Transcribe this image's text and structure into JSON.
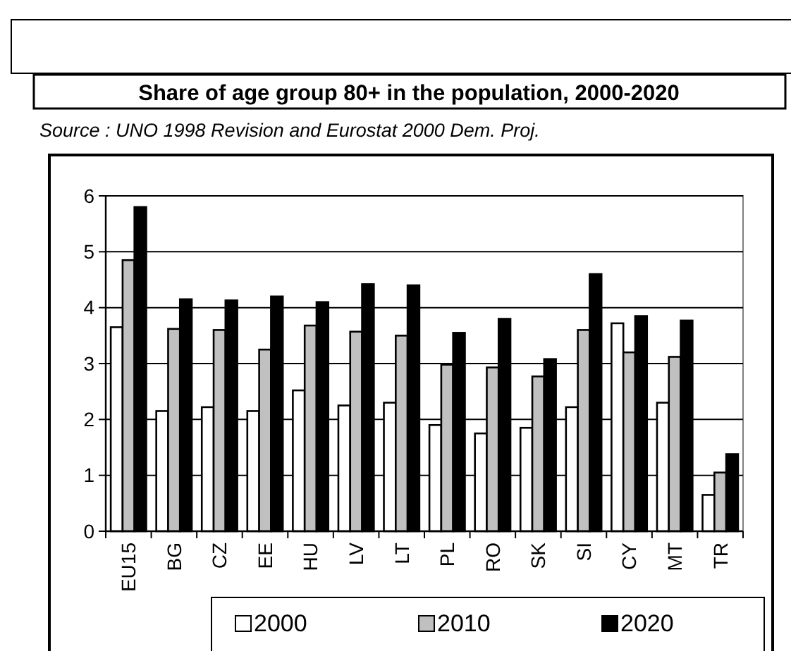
{
  "chart_data": {
    "type": "bar",
    "title": "Share of age group 80+ in the population, 2000-2020",
    "annotations": [
      "Source : UNO 1998 Revision and Eurostat 2000 Dem. Proj."
    ],
    "categories": [
      "EU15",
      "BG",
      "CZ",
      "EE",
      "HU",
      "LV",
      "LT",
      "PL",
      "RO",
      "SK",
      "SI",
      "CY",
      "MT",
      "TR"
    ],
    "series": [
      {
        "name": "2000",
        "color": "#ffffff",
        "values": [
          3.65,
          2.15,
          2.22,
          2.15,
          2.52,
          2.25,
          2.3,
          1.9,
          1.75,
          1.85,
          2.22,
          3.72,
          2.3,
          0.65
        ]
      },
      {
        "name": "2010",
        "color": "#c0c0c0",
        "values": [
          4.85,
          3.62,
          3.6,
          3.25,
          3.68,
          3.57,
          3.5,
          2.98,
          2.93,
          2.77,
          3.6,
          3.2,
          3.12,
          1.05
        ]
      },
      {
        "name": "2020",
        "color": "#000000",
        "values": [
          5.8,
          4.15,
          4.13,
          4.2,
          4.1,
          4.42,
          4.4,
          3.55,
          3.8,
          3.08,
          4.6,
          3.85,
          3.77,
          1.38
        ]
      }
    ],
    "ylim": [
      0,
      6
    ],
    "yticks": [
      0,
      1,
      2,
      3,
      4,
      5,
      6
    ],
    "grid": "y",
    "legend": "bottom"
  }
}
